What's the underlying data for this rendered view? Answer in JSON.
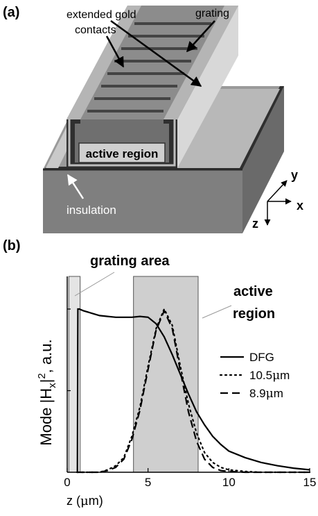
{
  "panel_a": {
    "label": "(a)",
    "annotations": {
      "gold_line1": "extended gold",
      "gold_line2": "contacts",
      "grating": "grating",
      "active_region": "active region",
      "insulation": "insulation"
    },
    "axes": {
      "x": "x",
      "y": "y",
      "z": "z"
    }
  },
  "panel_b": {
    "label": "(b)",
    "grating_area": "grating area",
    "active_line1": "active",
    "active_line2": "region",
    "ylabel": {
      "prefix": "Mode |H",
      "sub": "x",
      "bar": "|",
      "sup": "2",
      "suffix": ", a.u."
    },
    "xlabel": {
      "pre": "z (",
      "mu": "μ",
      "post": "m)"
    }
  },
  "chart_data": {
    "type": "line",
    "xlabel": "z (μm)",
    "ylabel": "Mode |Hx|², a.u.",
    "xlim": [
      0,
      15
    ],
    "ylim": [
      0,
      1.2
    ],
    "xticks": [
      "0",
      "5",
      "10",
      "15"
    ],
    "shaded_regions": [
      {
        "label": "grating area",
        "x": [
          0.1,
          0.8
        ]
      },
      {
        "label": "active region",
        "x": [
          4.1,
          8.1
        ]
      }
    ],
    "legend": {
      "placement": "right",
      "entries": [
        {
          "name": "DFG",
          "pre": "DFG",
          "mu": "",
          "post": "",
          "style": "solid"
        },
        {
          "name": "10.5μm",
          "pre": "10.5",
          "mu": "μ",
          "post": "m",
          "style": "dotted"
        },
        {
          "name": "8.9μm",
          "pre": "8.9",
          "mu": "μ",
          "post": "m",
          "style": "dashed"
        }
      ]
    },
    "series": [
      {
        "name": "DFG",
        "style": "solid",
        "x": [
          0.63,
          0.66,
          0.72,
          0.75,
          1,
          1.5,
          2,
          2.5,
          3,
          3.5,
          4,
          4.5,
          5,
          5.5,
          6,
          6.5,
          7,
          7.5,
          8,
          8.5,
          9,
          9.5,
          10,
          11,
          12,
          13,
          14,
          15
        ],
        "y": [
          0,
          1.0,
          1.0,
          1.0,
          0.99,
          0.975,
          0.96,
          0.955,
          0.95,
          0.95,
          0.95,
          0.955,
          0.95,
          0.91,
          0.83,
          0.72,
          0.6,
          0.48,
          0.37,
          0.29,
          0.22,
          0.17,
          0.13,
          0.09,
          0.06,
          0.04,
          0.025,
          0.015
        ]
      },
      {
        "name": "10.5μm",
        "style": "dotted",
        "x": [
          0.6,
          2,
          2.5,
          3,
          3.5,
          4,
          4.5,
          5,
          5.5,
          6,
          6.5,
          7,
          7.5,
          8,
          8.5,
          9,
          9.5,
          10,
          11,
          12,
          13,
          15
        ],
        "y": [
          0,
          0,
          0.015,
          0.04,
          0.09,
          0.22,
          0.4,
          0.65,
          0.88,
          1.0,
          0.9,
          0.65,
          0.42,
          0.24,
          0.12,
          0.06,
          0.03,
          0.015,
          0.005,
          0,
          0,
          0
        ]
      },
      {
        "name": "8.9μm",
        "style": "dashed",
        "x": [
          0.6,
          2,
          2.5,
          3,
          3.5,
          4,
          4.5,
          5,
          5.5,
          6,
          6.5,
          7,
          7.5,
          8,
          8.5,
          9,
          9.5,
          10,
          11,
          12,
          13,
          15
        ],
        "y": [
          0,
          0,
          0.01,
          0.03,
          0.08,
          0.2,
          0.38,
          0.63,
          0.87,
          0.99,
          0.88,
          0.62,
          0.37,
          0.19,
          0.08,
          0.03,
          0.01,
          0.005,
          0,
          0,
          0,
          0
        ]
      }
    ]
  }
}
